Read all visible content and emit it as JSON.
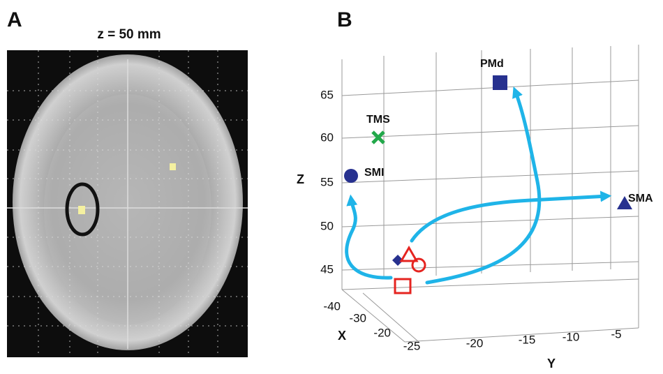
{
  "panel_a": {
    "label": "A",
    "title": "z = 50 mm"
  },
  "panel_b": {
    "label": "B",
    "z_axis": {
      "label": "Z",
      "ticks": [
        65,
        60,
        55,
        50,
        45
      ]
    },
    "x_axis": {
      "label": "X",
      "ticks": [
        -40,
        -30,
        -20
      ]
    },
    "y_axis": {
      "label": "Y",
      "ticks": [
        -25,
        -20,
        -15,
        -10,
        -5
      ]
    },
    "points": [
      "PMd",
      "TMS",
      "SMI",
      "SMA"
    ]
  }
}
